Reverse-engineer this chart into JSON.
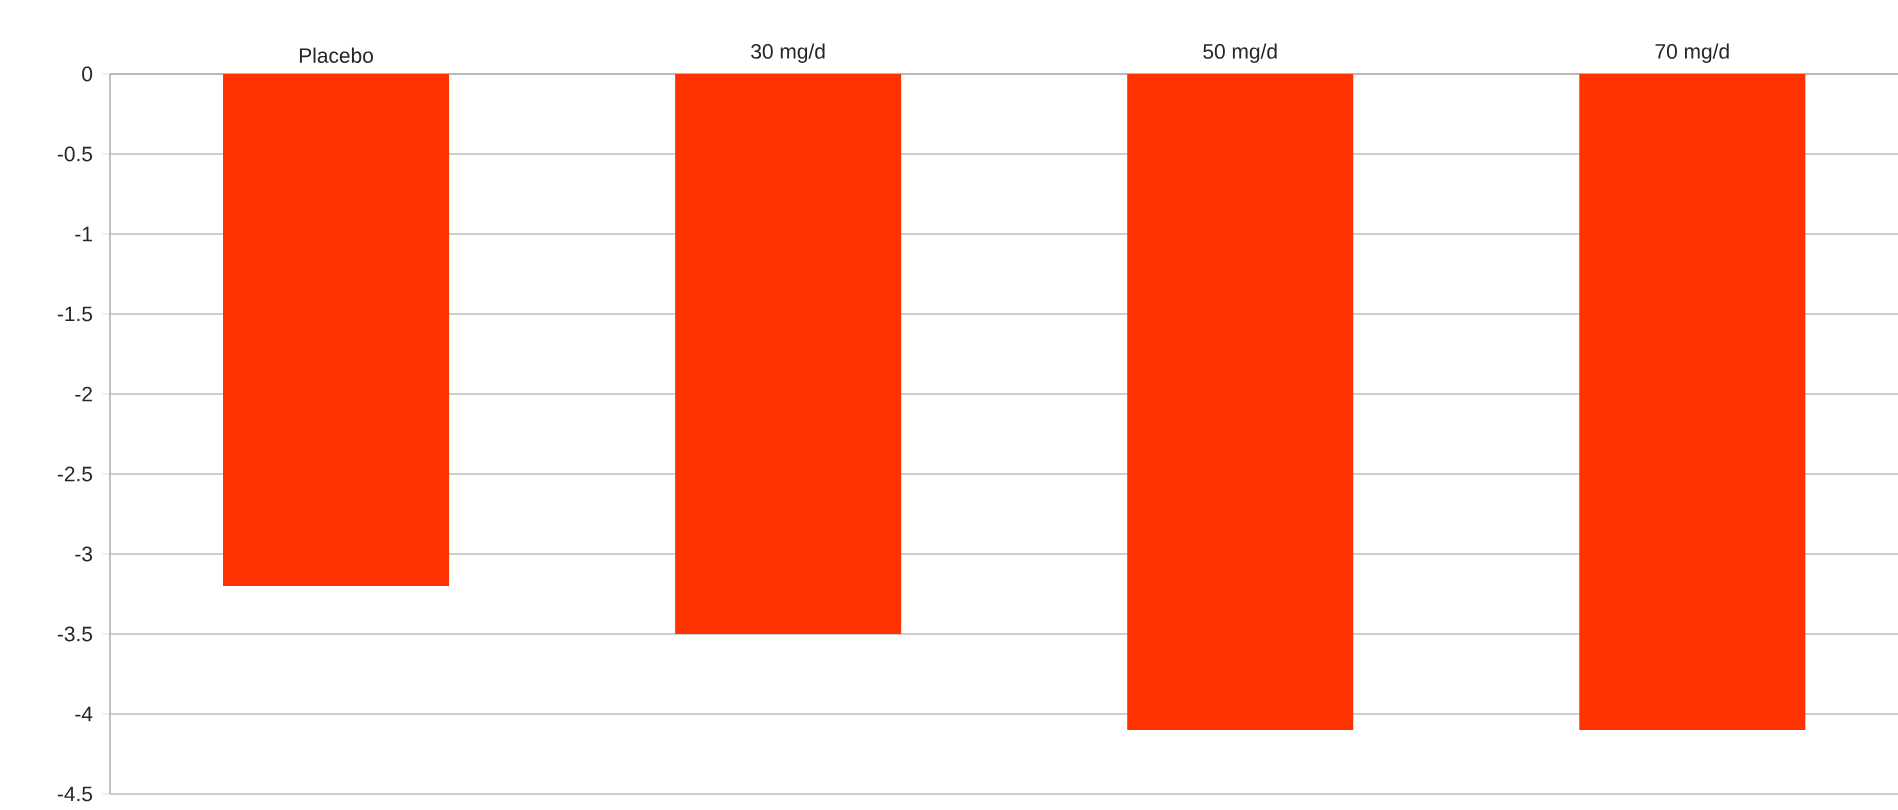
{
  "chart_data": {
    "type": "bar",
    "categories": [
      "Placebo",
      "30 mg/d",
      "50 mg/d",
      "70 mg/d"
    ],
    "values": [
      -3.2,
      -3.5,
      -4.1,
      -4.1
    ],
    "color": "#ff3300",
    "ylim": [
      -4.5,
      0
    ],
    "yticks": [
      0,
      -0.5,
      -1,
      -1.5,
      -2,
      -2.5,
      -3,
      -3.5,
      -4,
      -4.5
    ],
    "grid": "y"
  }
}
